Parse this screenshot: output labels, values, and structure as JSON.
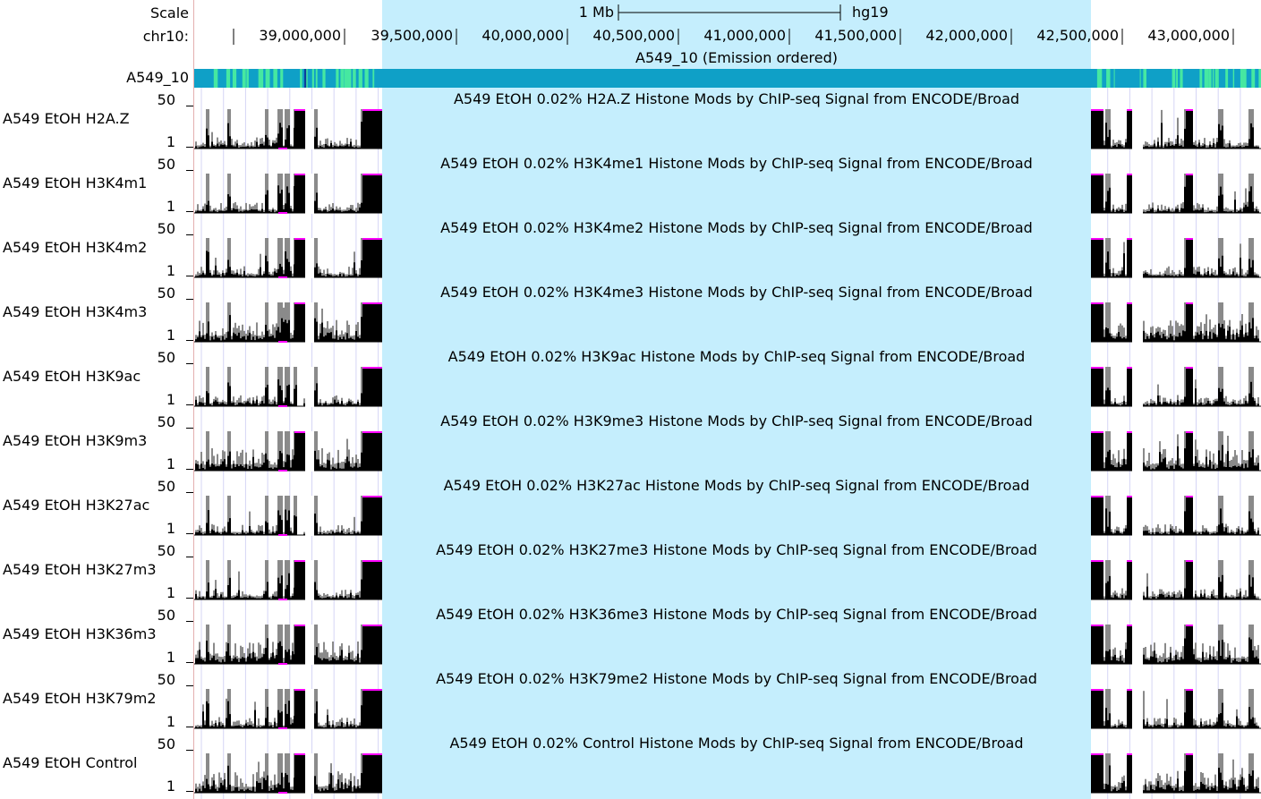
{
  "genome": "hg19",
  "ruler": {
    "scale_label": "Scale",
    "scale_bar_text": "1 Mb",
    "chrom_label": "chr10:",
    "positions": [
      "39,000,000",
      "39,500,000",
      "40,000,000",
      "40,500,000",
      "41,000,000",
      "41,500,000",
      "42,000,000",
      "42,500,000",
      "43,000,000"
    ]
  },
  "highlight_color": "#c5eefd",
  "segmentation_track": {
    "label": "A549_10",
    "title": "A549_10 (Emission ordered)",
    "colors": {
      "base": "#0fa0c7",
      "light": "#46e8a1",
      "dark": "#0d3d9b",
      "purple": "#8a2b8a"
    }
  },
  "signal_colors": {
    "dark": "#000000",
    "light": "#8a8a8a",
    "clip": "#ff00ff"
  },
  "tracks": [
    {
      "label": "A549 EtOH H2A.Z",
      "title": "A549 EtOH 0.02% H2A.Z Histone Mods by ChIP-seq Signal from ENCODE/Broad",
      "scale_max": "50",
      "scale_min": "1"
    },
    {
      "label": "A549 EtOH H3K4m1",
      "title": "A549 EtOH 0.02% H3K4me1 Histone Mods by ChIP-seq Signal from ENCODE/Broad",
      "scale_max": "50",
      "scale_min": "1"
    },
    {
      "label": "A549 EtOH H3K4m2",
      "title": "A549 EtOH 0.02% H3K4me2 Histone Mods by ChIP-seq Signal from ENCODE/Broad",
      "scale_max": "50",
      "scale_min": "1"
    },
    {
      "label": "A549 EtOH H3K4m3",
      "title": "A549 EtOH 0.02% H3K4me3 Histone Mods by ChIP-seq Signal from ENCODE/Broad",
      "scale_max": "50",
      "scale_min": "1"
    },
    {
      "label": "A549 EtOH H3K9ac",
      "title": "A549 EtOH 0.02% H3K9ac Histone Mods by ChIP-seq Signal from ENCODE/Broad",
      "scale_max": "50",
      "scale_min": "1"
    },
    {
      "label": "A549 EtOH H3K9m3",
      "title": "A549 EtOH 0.02% H3K9me3 Histone Mods by ChIP-seq Signal from ENCODE/Broad",
      "scale_max": "50",
      "scale_min": "1"
    },
    {
      "label": "A549 EtOH H3K27ac",
      "title": "A549 EtOH 0.02% H3K27ac Histone Mods by ChIP-seq Signal from ENCODE/Broad",
      "scale_max": "50",
      "scale_min": "1"
    },
    {
      "label": "A549 EtOH H3K27m3",
      "title": "A549 EtOH 0.02% H3K27me3 Histone Mods by ChIP-seq Signal from ENCODE/Broad",
      "scale_max": "50",
      "scale_min": "1"
    },
    {
      "label": "A549 EtOH H3K36m3",
      "title": "A549 EtOH 0.02% H3K36me3 Histone Mods by ChIP-seq Signal from ENCODE/Broad",
      "scale_max": "50",
      "scale_min": "1"
    },
    {
      "label": "A549 EtOH H3K79m2",
      "title": "A549 EtOH 0.02% H3K79me2 Histone Mods by ChIP-seq Signal from ENCODE/Broad",
      "scale_max": "50",
      "scale_min": "1"
    },
    {
      "label": "A549 EtOH Control",
      "title": "A549 EtOH 0.02% Control Histone Mods by ChIP-seq Signal from ENCODE/Broad",
      "scale_max": "50",
      "scale_min": "1"
    }
  ]
}
